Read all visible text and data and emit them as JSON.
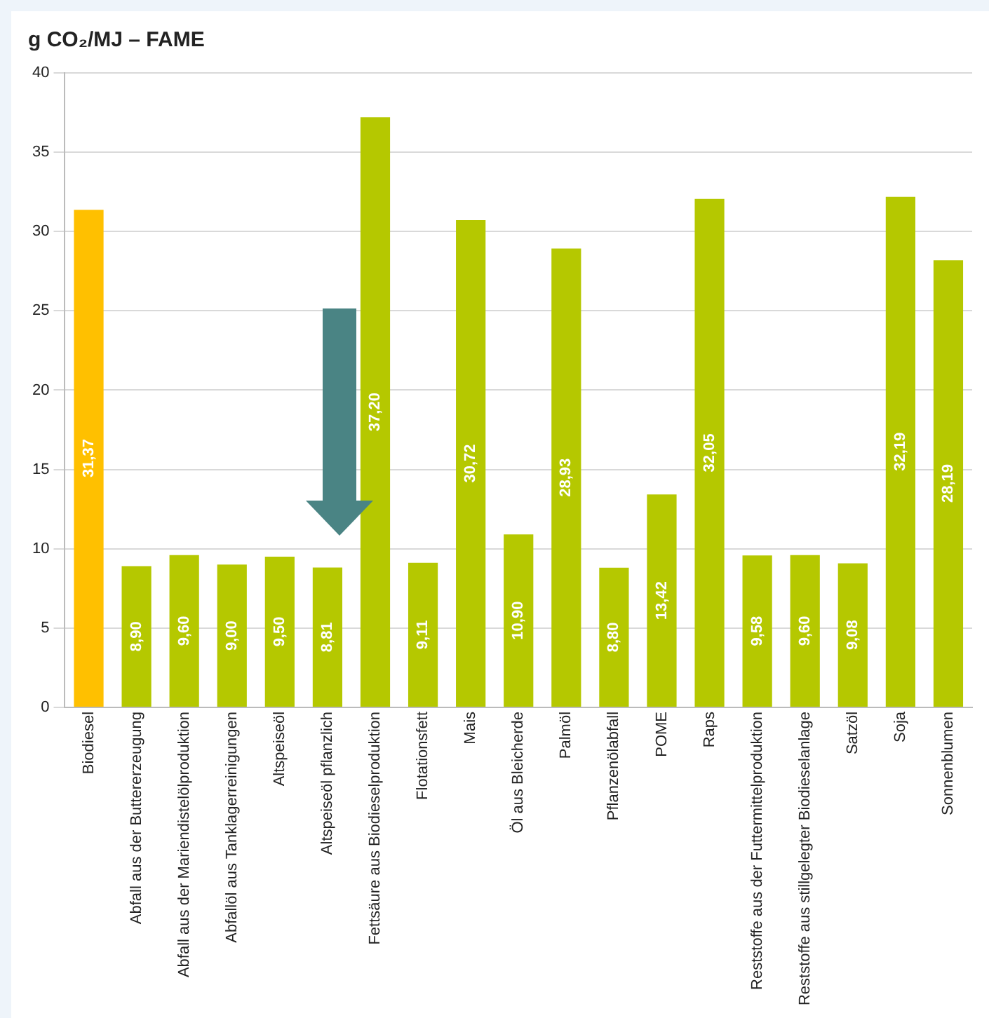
{
  "chart_data": {
    "type": "bar",
    "title": "g CO₂/MJ – FAME",
    "categories": [
      "Biodiesel",
      "Abfall aus der Buttererzeugung",
      "Abfall aus der Mariendistelölproduktion",
      "Abfallöl aus Tanklagerreinigungen",
      "Altspeiseöl",
      "Altspeiseöl pflanzlich",
      "Fettsäure aus Biodieselproduktion",
      "Flotationsfett",
      "Mais",
      "Öl aus Bleicherde",
      "Palmöl",
      "Pflanzenölabfall",
      "POME",
      "Raps",
      "Reststoffe aus der Futtermittelproduktion",
      "Reststoffe aus stillgelegter Biodieselanlage",
      "Satzöl",
      "Soja",
      "Sonnenblumen"
    ],
    "values": [
      31.37,
      8.9,
      9.6,
      9.0,
      9.5,
      8.81,
      37.2,
      9.11,
      30.72,
      10.9,
      28.93,
      8.8,
      13.42,
      32.05,
      9.58,
      9.6,
      9.08,
      32.19,
      28.19
    ],
    "value_labels": [
      "31,37",
      "8,90",
      "9,60",
      "9,00",
      "9,50",
      "8,81",
      "37,20",
      "9,11",
      "30,72",
      "10,90",
      "28,93",
      "8,80",
      "13,42",
      "32,05",
      "9,58",
      "9,60",
      "9,08",
      "32,19",
      "28,19"
    ],
    "colors": [
      "#ffc000",
      "#b5c800",
      "#b5c800",
      "#b5c800",
      "#b5c800",
      "#b5c800",
      "#b5c800",
      "#b5c800",
      "#b5c800",
      "#b5c800",
      "#b5c800",
      "#b5c800",
      "#b5c800",
      "#b5c800",
      "#b5c800",
      "#b5c800",
      "#b5c800",
      "#b5c800",
      "#b5c800"
    ],
    "ylim": [
      0,
      40
    ],
    "yticks": [
      0,
      5,
      10,
      15,
      20,
      25,
      30,
      35,
      40
    ],
    "grid": "y",
    "legend": false
  }
}
